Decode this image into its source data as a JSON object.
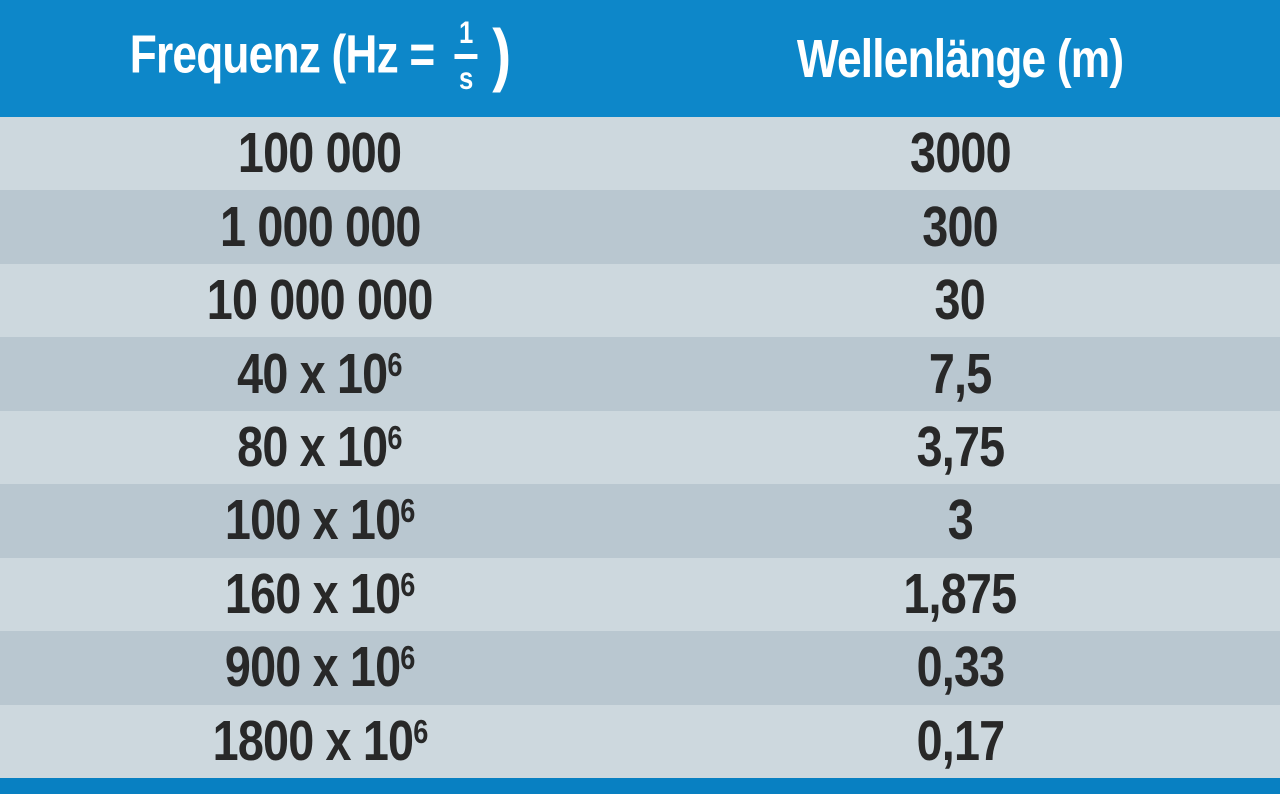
{
  "header": {
    "frequency_prefix": "Frequenz (Hz =",
    "fraction_numerator": "1",
    "fraction_denominator": "s",
    "frequency_suffix": ")",
    "wavelength_label": "Wellenlänge (m)"
  },
  "table": {
    "rows": [
      {
        "frequency_base": "100 000",
        "frequency_exponent": "",
        "wavelength": "3000"
      },
      {
        "frequency_base": "1 000 000",
        "frequency_exponent": "",
        "wavelength": "300"
      },
      {
        "frequency_base": "10 000 000",
        "frequency_exponent": "",
        "wavelength": "30"
      },
      {
        "frequency_base": "40 x 10",
        "frequency_exponent": "6",
        "wavelength": "7,5"
      },
      {
        "frequency_base": "80 x 10",
        "frequency_exponent": "6",
        "wavelength": "3,75"
      },
      {
        "frequency_base": "100 x 10",
        "frequency_exponent": "6",
        "wavelength": "3"
      },
      {
        "frequency_base": "160 x 10",
        "frequency_exponent": "6",
        "wavelength": "1,875"
      },
      {
        "frequency_base": "900 x 10",
        "frequency_exponent": "6",
        "wavelength": "0,33"
      },
      {
        "frequency_base": "1800 x 10",
        "frequency_exponent": "6",
        "wavelength": "0,17"
      }
    ]
  },
  "colors": {
    "header_background": "#0d87c9",
    "bottom_bar": "#0880c2",
    "row_light": "#cdd8de",
    "row_dark": "#b9c7d0",
    "header_text": "#ffffff",
    "cell_text": "#282828"
  },
  "chart_data": {
    "type": "table",
    "title": "",
    "columns": [
      "Frequenz (Hz = 1/s)",
      "Wellenlänge (m)"
    ],
    "rows": [
      [
        "100 000",
        "3000"
      ],
      [
        "1 000 000",
        "300"
      ],
      [
        "10 000 000",
        "30"
      ],
      [
        "40 x 10^6",
        "7,5"
      ],
      [
        "80 x 10^6",
        "3,75"
      ],
      [
        "100 x 10^6",
        "3"
      ],
      [
        "160 x 10^6",
        "1,875"
      ],
      [
        "900 x 10^6",
        "0,33"
      ],
      [
        "1800 x 10^6",
        "0,17"
      ]
    ]
  }
}
